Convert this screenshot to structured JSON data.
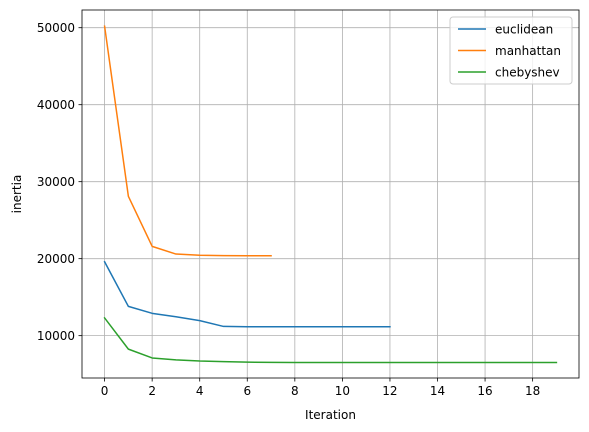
{
  "chart_data": {
    "type": "line",
    "title": "",
    "xlabel": "Iteration",
    "ylabel": "inertia",
    "xlim": [
      -0.95,
      19.95
    ],
    "ylim": [
      4500,
      52300
    ],
    "xticks": [
      0,
      2,
      4,
      6,
      8,
      10,
      12,
      14,
      16,
      18
    ],
    "yticks": [
      10000,
      20000,
      30000,
      40000,
      50000
    ],
    "xtick_labels": [
      "0",
      "2",
      "4",
      "6",
      "8",
      "10",
      "12",
      "14",
      "16",
      "18"
    ],
    "ytick_labels": [
      "10000",
      "20000",
      "30000",
      "40000",
      "50000"
    ],
    "grid": true,
    "legend_position": "top-right",
    "series": [
      {
        "name": "euclidean",
        "color": "#1f77b4",
        "x": [
          0,
          1,
          2,
          3,
          4,
          5,
          6,
          7,
          8,
          9,
          10,
          11,
          12
        ],
        "y": [
          19600,
          13800,
          12900,
          12450,
          11950,
          11200,
          11150,
          11150,
          11150,
          11150,
          11150,
          11150,
          11150
        ]
      },
      {
        "name": "manhattan",
        "color": "#ff7f0e",
        "x": [
          0,
          1,
          2,
          3,
          4,
          5,
          6,
          7
        ],
        "y": [
          50200,
          28100,
          21600,
          20600,
          20450,
          20400,
          20380,
          20380
        ]
      },
      {
        "name": "chebyshev",
        "color": "#2ca02c",
        "x": [
          0,
          1,
          2,
          3,
          4,
          5,
          6,
          7,
          8,
          9,
          10,
          11,
          12,
          13,
          14,
          15,
          16,
          17,
          18,
          19
        ],
        "y": [
          12300,
          8250,
          7100,
          6850,
          6700,
          6620,
          6560,
          6530,
          6520,
          6510,
          6510,
          6510,
          6510,
          6510,
          6510,
          6510,
          6510,
          6510,
          6510,
          6510
        ]
      }
    ]
  }
}
